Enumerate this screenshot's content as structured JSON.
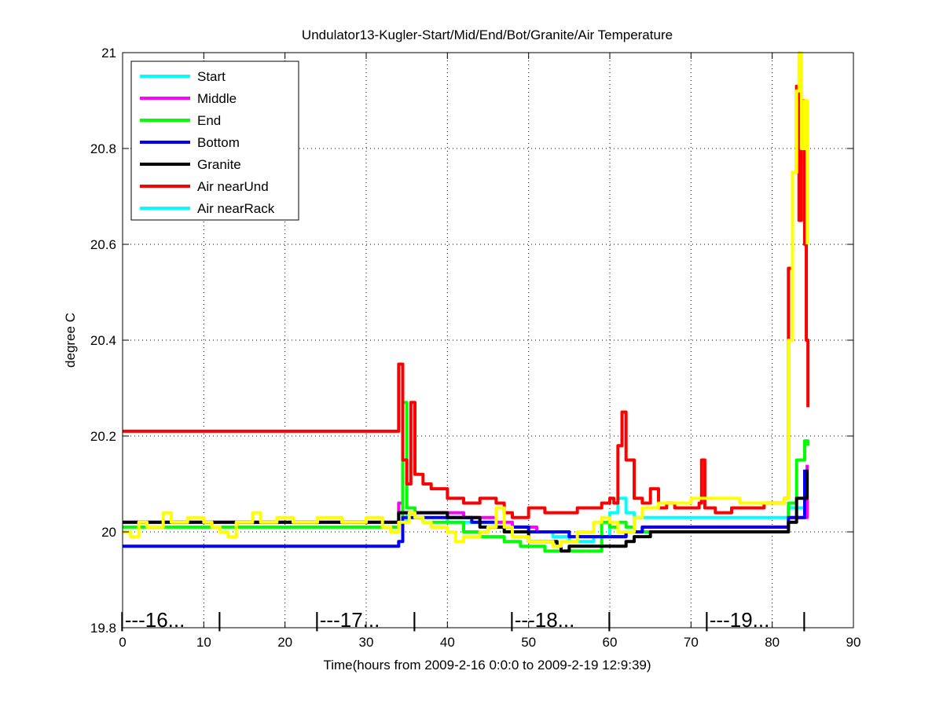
{
  "chart_data": {
    "type": "line",
    "title": "Undulator13-Kugler-Start/Mid/End/Bot/Granite/Air Temperature",
    "xlabel": "Time(hours from 2009-2-16 0:0:0 to 2009-2-19 12:9:39)",
    "ylabel": "degree C",
    "xlim": [
      0,
      90
    ],
    "ylim": [
      19.8,
      21
    ],
    "xticks": [
      0,
      10,
      20,
      30,
      40,
      50,
      60,
      70,
      80,
      90
    ],
    "yticks": [
      19.8,
      20,
      20.2,
      20.4,
      20.6,
      20.8,
      21
    ],
    "ytick_labels": [
      "19.8",
      "20",
      "20.2",
      "20.4",
      "20.6",
      "20.8",
      "21"
    ],
    "grid": true,
    "legend_position": "top-left",
    "legend": [
      {
        "name": "Start",
        "color": "#00ffff"
      },
      {
        "name": "Middle",
        "color": "#ff00ff"
      },
      {
        "name": "End",
        "color": "#00ff00"
      },
      {
        "name": "Bottom",
        "color": "#0000ff"
      },
      {
        "name": "Granite",
        "color": "#000000"
      },
      {
        "name": "Air nearUnd",
        "color": "#ff0000"
      },
      {
        "name": "Air nearRack",
        "color": "#00ffff"
      }
    ],
    "day_markers": [
      {
        "x": 0,
        "label": "|---16..."
      },
      {
        "x": 12,
        "label": "|"
      },
      {
        "x": 24,
        "label": "|---17..."
      },
      {
        "x": 36,
        "label": "|"
      },
      {
        "x": 48,
        "label": "|---18..."
      },
      {
        "x": 60,
        "label": "|"
      },
      {
        "x": 72,
        "label": "|---19..."
      },
      {
        "x": 84,
        "label": "|"
      }
    ],
    "series": [
      {
        "name": "Start",
        "color": "#00ffff",
        "x": [
          0,
          33.5,
          35,
          40,
          44,
          47,
          50,
          53,
          55,
          58,
          60,
          61,
          62,
          63,
          81,
          82,
          84.3
        ],
        "y": [
          20.02,
          20.02,
          20.04,
          20.02,
          20.02,
          20.01,
          20.0,
          19.99,
          19.98,
          19.99,
          20.04,
          20.07,
          20.04,
          20.03,
          20.03,
          20.05,
          20.14
        ]
      },
      {
        "name": "Middle",
        "color": "#ff00ff",
        "x": [
          0,
          33.5,
          34,
          34.5,
          38,
          42,
          46,
          48,
          51,
          55,
          60,
          62,
          64,
          81,
          82,
          84.3
        ],
        "y": [
          20.02,
          20.02,
          20.06,
          20.04,
          20.04,
          20.03,
          20.02,
          20.01,
          20.0,
          19.99,
          19.99,
          20.0,
          20.01,
          20.01,
          20.03,
          20.14
        ]
      },
      {
        "name": "End",
        "color": "#00ff00",
        "x": [
          0,
          33,
          34,
          34.5,
          35,
          36,
          37,
          40,
          42,
          44,
          47,
          49,
          51,
          52,
          58.7,
          59,
          60,
          61,
          62,
          63,
          80,
          81.5,
          82,
          83,
          84,
          84.4
        ],
        "y": [
          20.01,
          20.01,
          20.02,
          20.27,
          20.05,
          20.03,
          20.02,
          20.02,
          20.0,
          19.99,
          19.98,
          19.97,
          19.97,
          19.96,
          19.96,
          20.02,
          20.01,
          20.02,
          20.01,
          20.0,
          20.0,
          20.0,
          20.06,
          20.15,
          20.19,
          20.18
        ]
      },
      {
        "name": "Bottom",
        "color": "#0000ff",
        "x": [
          0,
          33.5,
          34,
          34.5,
          38,
          43,
          46,
          50,
          55,
          58,
          61,
          62,
          64,
          70,
          81,
          82,
          84
        ],
        "y": [
          19.97,
          19.97,
          19.98,
          20.03,
          20.03,
          20.02,
          20.01,
          20.0,
          19.99,
          19.99,
          19.99,
          20.0,
          20.01,
          20.01,
          20.01,
          20.03,
          20.13
        ]
      },
      {
        "name": "Granite",
        "color": "#000000",
        "x": [
          0,
          33,
          34,
          40,
          44,
          47,
          50,
          52,
          53.5,
          54,
          55,
          60,
          62,
          63,
          65,
          80,
          81.5,
          82,
          83,
          84.3
        ],
        "y": [
          20.02,
          20.02,
          20.04,
          20.03,
          20.01,
          20.0,
          19.98,
          19.98,
          19.97,
          19.96,
          19.97,
          19.97,
          19.98,
          19.99,
          20.0,
          20.0,
          20.0,
          20.02,
          20.07,
          20.13
        ]
      },
      {
        "name": "Air nearUnd",
        "color": "#ff0000",
        "x": [
          0,
          33.8,
          34,
          34.5,
          35,
          35.5,
          36,
          37,
          38,
          40,
          42,
          44,
          46,
          47,
          48,
          50,
          52,
          54,
          56,
          58,
          59,
          60,
          60.5,
          61,
          61.5,
          62,
          63,
          64,
          65,
          66,
          67,
          68,
          70,
          71,
          71.3,
          71.7,
          73,
          75,
          77,
          79,
          81,
          81.5,
          82,
          82.5,
          83,
          83.3,
          83.6,
          84,
          84.2,
          84.4
        ],
        "y": [
          20.21,
          20.21,
          20.35,
          20.15,
          20.1,
          20.27,
          20.12,
          20.1,
          20.09,
          20.07,
          20.06,
          20.07,
          20.06,
          20.04,
          20.03,
          20.05,
          20.04,
          20.04,
          20.05,
          20.05,
          20.06,
          20.07,
          20.06,
          20.18,
          20.25,
          20.15,
          20.07,
          20.06,
          20.09,
          20.05,
          20.06,
          20.05,
          20.05,
          20.06,
          20.15,
          20.05,
          20.04,
          20.05,
          20.05,
          20.06,
          20.06,
          20.07,
          20.55,
          20.75,
          20.93,
          20.65,
          20.9,
          20.6,
          20.4,
          20.26
        ]
      },
      {
        "name": "",
        "color": "#ffff00",
        "x": [
          0,
          1,
          2,
          3,
          5,
          6,
          8,
          10,
          11,
          12,
          13,
          14,
          16,
          17,
          19,
          21,
          24,
          27,
          30,
          32,
          33,
          34,
          35.3,
          36,
          37,
          38,
          39,
          40,
          41,
          42,
          44,
          45,
          46,
          47,
          48,
          49,
          50,
          52,
          53,
          54,
          56,
          58,
          59,
          60,
          61,
          62,
          63,
          64,
          66,
          68,
          70,
          72,
          74,
          76,
          78,
          80,
          81.5,
          82,
          82.5,
          83,
          83.3,
          83.6,
          84,
          84.3
        ],
        "y": [
          20.0,
          19.99,
          20.02,
          20.01,
          20.04,
          20.02,
          20.03,
          20.02,
          20.01,
          20.0,
          19.99,
          20.02,
          20.04,
          20.02,
          20.03,
          20.02,
          20.03,
          20.02,
          20.03,
          20.01,
          20.0,
          20.02,
          20.04,
          20.03,
          20.02,
          20.01,
          20.01,
          20.0,
          19.98,
          19.99,
          20.0,
          20.01,
          20.05,
          20.01,
          19.99,
          19.99,
          19.98,
          19.98,
          19.97,
          19.98,
          20.0,
          20.02,
          20.03,
          20.02,
          20.0,
          20.0,
          20.03,
          20.05,
          20.06,
          20.06,
          20.07,
          20.07,
          20.07,
          20.06,
          20.06,
          20.06,
          20.07,
          20.4,
          20.75,
          20.92,
          21.0,
          20.8,
          20.9,
          20.6
        ]
      }
    ]
  }
}
